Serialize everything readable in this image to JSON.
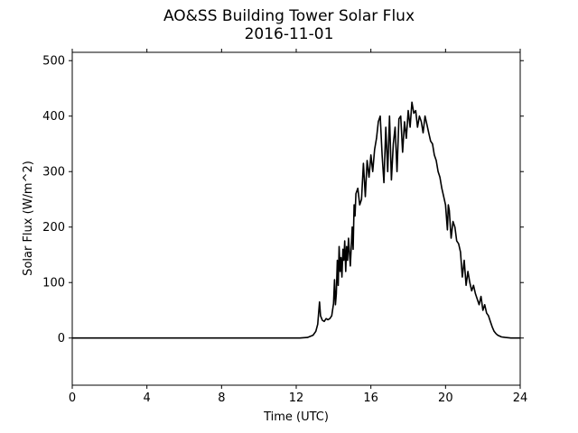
{
  "chart_data": {
    "type": "line",
    "title": "AO&SS Building Tower Solar Flux",
    "subtitle": "2016-11-01",
    "xlabel": "Time (UTC)",
    "ylabel": "Solar Flux (W/m^2)",
    "xlim": [
      0,
      24
    ],
    "ylim": [
      -85,
      515
    ],
    "xticks": [
      0,
      4,
      8,
      12,
      16,
      20,
      24
    ],
    "yticks": [
      0,
      100,
      200,
      300,
      400,
      500
    ],
    "grid": false,
    "line_color": "#000000",
    "series": [
      {
        "x": [
          0,
          12.2,
          12.6,
          12.9,
          13.05,
          13.15,
          13.2,
          13.25,
          13.3,
          13.4,
          13.5,
          13.6,
          13.7,
          13.8,
          13.9,
          14.0,
          14.05,
          14.1,
          14.15,
          14.2,
          14.25,
          14.3,
          14.35,
          14.4,
          14.45,
          14.5,
          14.55,
          14.6,
          14.65,
          14.7,
          14.75,
          14.8,
          14.9,
          15.0,
          15.05,
          15.1,
          15.15,
          15.2,
          15.3,
          15.4,
          15.5,
          15.6,
          15.7,
          15.8,
          15.9,
          16.0,
          16.1,
          16.2,
          16.3,
          16.4,
          16.5,
          16.6,
          16.7,
          16.8,
          16.9,
          17.0,
          17.1,
          17.2,
          17.3,
          17.4,
          17.5,
          17.6,
          17.7,
          17.8,
          17.9,
          18.0,
          18.1,
          18.2,
          18.3,
          18.4,
          18.5,
          18.6,
          18.7,
          18.8,
          18.9,
          19.0,
          19.1,
          19.2,
          19.3,
          19.4,
          19.5,
          19.6,
          19.7,
          19.8,
          19.9,
          20.0,
          20.1,
          20.15,
          20.2,
          20.3,
          20.4,
          20.5,
          20.6,
          20.7,
          20.8,
          20.9,
          21.0,
          21.1,
          21.2,
          21.3,
          21.4,
          21.5,
          21.6,
          21.7,
          21.8,
          21.9,
          22.0,
          22.1,
          22.2,
          22.3,
          22.4,
          22.5,
          22.6,
          22.7,
          22.8,
          23.0,
          23.2,
          23.5,
          24.0
        ],
        "values": [
          0,
          0,
          1,
          5,
          12,
          25,
          45,
          65,
          40,
          32,
          30,
          35,
          33,
          35,
          40,
          62,
          105,
          60,
          80,
          140,
          95,
          165,
          120,
          145,
          110,
          160,
          140,
          175,
          120,
          165,
          140,
          180,
          130,
          200,
          160,
          240,
          220,
          260,
          270,
          240,
          250,
          315,
          255,
          320,
          290,
          330,
          300,
          340,
          360,
          390,
          400,
          330,
          280,
          380,
          300,
          400,
          285,
          350,
          380,
          300,
          395,
          400,
          335,
          390,
          360,
          410,
          380,
          425,
          405,
          410,
          380,
          400,
          390,
          370,
          400,
          385,
          370,
          355,
          350,
          330,
          320,
          300,
          290,
          270,
          255,
          240,
          195,
          240,
          230,
          180,
          210,
          200,
          175,
          170,
          155,
          110,
          140,
          95,
          120,
          100,
          85,
          95,
          80,
          70,
          60,
          75,
          50,
          60,
          45,
          40,
          30,
          20,
          12,
          8,
          5,
          2,
          1,
          0,
          0
        ]
      }
    ]
  }
}
